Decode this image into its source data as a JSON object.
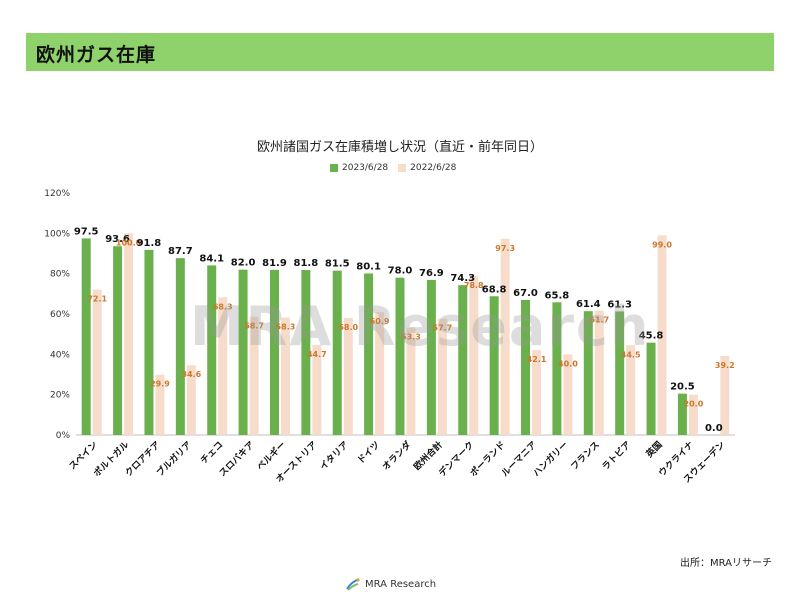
{
  "header": {
    "title": "欧州ガス在庫"
  },
  "chart_data": {
    "type": "bar",
    "title": "欧州諸国ガス在庫積増し状況（直近・前年同日）",
    "categories": [
      "スペイン",
      "ポルトガル",
      "クロアチア",
      "ブルガリア",
      "チェコ",
      "スロバキア",
      "ベルギー",
      "オーストリア",
      "イタリア",
      "ドイツ",
      "オランダ",
      "欧州合計",
      "デンマーク",
      "ポーランド",
      "ルーマニア",
      "ハンガリー",
      "フランス",
      "ラトビア",
      "英国",
      "ウクライナ",
      "スウェーデン"
    ],
    "series": [
      {
        "name": "2023/6/28",
        "color": "#6ab04c",
        "label_color": "#111111",
        "values": [
          97.5,
          93.6,
          91.8,
          87.7,
          84.1,
          82.0,
          81.9,
          81.8,
          81.5,
          80.1,
          78.0,
          76.9,
          74.3,
          68.8,
          67.0,
          65.8,
          61.4,
          61.3,
          45.8,
          20.5,
          0.0
        ]
      },
      {
        "name": "2022/6/28",
        "color": "#f8dccb",
        "label_color": "#c9782e",
        "values": [
          72.1,
          100.0,
          29.9,
          34.6,
          68.3,
          58.7,
          58.3,
          44.7,
          58.0,
          60.9,
          53.3,
          57.7,
          78.8,
          97.3,
          42.1,
          40.0,
          61.7,
          44.5,
          99.0,
          20.0,
          39.2
        ]
      }
    ],
    "y_ticks": [
      "0%",
      "20%",
      "40%",
      "60%",
      "80%",
      "100%",
      "120%"
    ],
    "ylim": [
      0,
      120
    ],
    "grid": false,
    "legend": "top-center"
  },
  "watermark": "MRA Research",
  "source": "出所：MRAリサーチ",
  "logo": {
    "text": "MRA Research"
  }
}
